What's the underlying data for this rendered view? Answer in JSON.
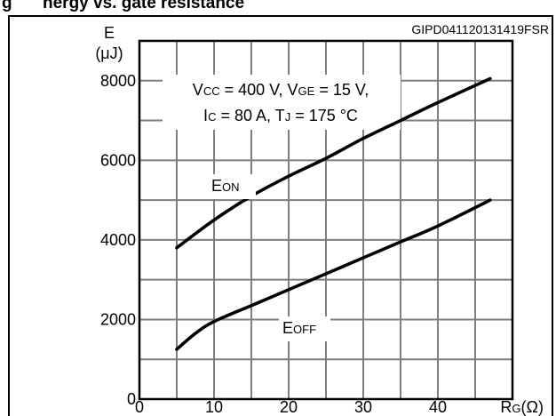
{
  "figure": {
    "header_text": "g",
    "header_partial": "nergy vs. gate resistance",
    "code": "GIPD041120131419FSR"
  },
  "conditions": {
    "line1": [
      {
        "t": "V"
      },
      {
        "t": "CC",
        "sub": true
      },
      {
        "t": " = 400 V, V"
      },
      {
        "t": "GE",
        "sub": true
      },
      {
        "t": " = 15 V,"
      }
    ],
    "line2": [
      {
        "t": "I"
      },
      {
        "t": "C",
        "sub": true
      },
      {
        "t": " = 80 A, T"
      },
      {
        "t": "J",
        "sub": true
      },
      {
        "t": " = 175 °C"
      }
    ]
  },
  "chart_data": {
    "type": "line",
    "y_axis": {
      "symbol": "E",
      "unit": "(μJ)",
      "ticks": [
        0,
        2000,
        4000,
        6000,
        8000
      ],
      "range": [
        0,
        9000
      ]
    },
    "x_axis": {
      "ticks": [
        0,
        10,
        20,
        30,
        40
      ],
      "range": [
        0,
        50
      ],
      "label_main": "R",
      "label_sub": "G",
      "label_unit": "(Ω)"
    },
    "grid": true,
    "series": [
      {
        "name_main": "E",
        "name_sub": "ON",
        "x": [
          5,
          10,
          15,
          20,
          25,
          30,
          35,
          40,
          47
        ],
        "y": [
          3800,
          4500,
          5100,
          5600,
          6050,
          6550,
          7000,
          7450,
          8050
        ]
      },
      {
        "name_main": "E",
        "name_sub": "OFF",
        "x": [
          5,
          7.5,
          10,
          15,
          20,
          25,
          30,
          35,
          40,
          47
        ],
        "y": [
          1250,
          1650,
          1950,
          2350,
          2750,
          3150,
          3550,
          3950,
          4350,
          5000
        ]
      }
    ]
  }
}
